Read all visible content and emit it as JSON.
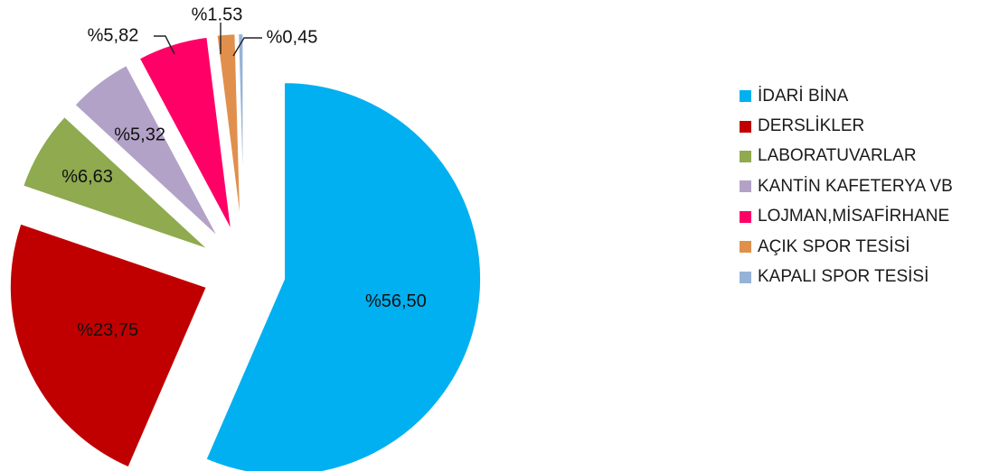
{
  "chart_data": {
    "type": "pie",
    "title": "",
    "exploded": true,
    "legend_position": "right",
    "slices": [
      {
        "name": "İDARİ BİNA",
        "value": 56.5,
        "label": "%56,50",
        "color": "#00B0F0"
      },
      {
        "name": "DERSLİKLER",
        "value": 23.75,
        "label": "%23,75",
        "color": "#C00000"
      },
      {
        "name": "LABORATUVARLAR",
        "value": 6.63,
        "label": "%6,63",
        "color": "#8FAA4F"
      },
      {
        "name": "KANTİN KAFETERYA VB",
        "value": 5.32,
        "label": "%5,32",
        "color": "#B3A2C7"
      },
      {
        "name": "LOJMAN,MİSAFİRHANE",
        "value": 5.82,
        "label": "%5,82",
        "color": "#FF0066"
      },
      {
        "name": "AÇIK SPOR TESİSİ",
        "value": 1.53,
        "label": "%1.53",
        "color": "#E0904C"
      },
      {
        "name": "KAPALI SPOR TESİSİ",
        "value": 0.45,
        "label": "%0,45",
        "color": "#95B3D7"
      }
    ]
  }
}
